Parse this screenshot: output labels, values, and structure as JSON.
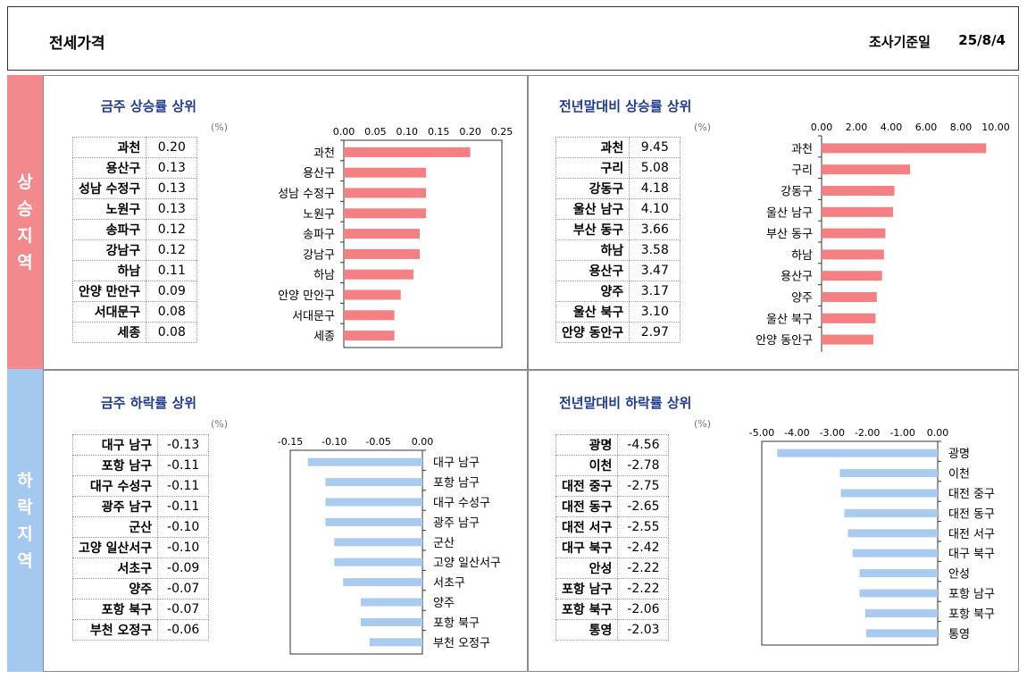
{
  "header": {
    "title": "전세가격",
    "date_label": "조사기준일",
    "date_value": "25/8/4"
  },
  "side_labels": {
    "rise": "상승지역",
    "fall": "하락지역"
  },
  "unit_label": "(%)",
  "panels": [
    {
      "id": "wk_up",
      "title": "금주 상승률 상위",
      "rows": [
        {
          "name": "과천",
          "value": "0.20"
        },
        {
          "name": "용산구",
          "value": "0.13"
        },
        {
          "name": "성남 수정구",
          "value": "0.13"
        },
        {
          "name": "노원구",
          "value": "0.13"
        },
        {
          "name": "송파구",
          "value": "0.12"
        },
        {
          "name": "강남구",
          "value": "0.12"
        },
        {
          "name": "하남",
          "value": "0.11"
        },
        {
          "name": "안양 만안구",
          "value": "0.09"
        },
        {
          "name": "서대문구",
          "value": "0.08"
        },
        {
          "name": "세종",
          "value": "0.08"
        }
      ]
    },
    {
      "id": "yr_up",
      "title": "전년말대비 상승률 상위",
      "rows": [
        {
          "name": "과천",
          "value": "9.45"
        },
        {
          "name": "구리",
          "value": "5.08"
        },
        {
          "name": "강동구",
          "value": "4.18"
        },
        {
          "name": "울산 남구",
          "value": "4.10"
        },
        {
          "name": "부산 동구",
          "value": "3.66"
        },
        {
          "name": "하남",
          "value": "3.58"
        },
        {
          "name": "용산구",
          "value": "3.47"
        },
        {
          "name": "양주",
          "value": "3.17"
        },
        {
          "name": "울산 북구",
          "value": "3.10"
        },
        {
          "name": "안양 동안구",
          "value": "2.97"
        }
      ]
    },
    {
      "id": "wk_down",
      "title": "금주 하락률 상위",
      "rows": [
        {
          "name": "대구 남구",
          "value": "-0.13"
        },
        {
          "name": "포항 남구",
          "value": "-0.11"
        },
        {
          "name": "대구 수성구",
          "value": "-0.11"
        },
        {
          "name": "광주 남구",
          "value": "-0.11"
        },
        {
          "name": "군산",
          "value": "-0.10"
        },
        {
          "name": "고양 일산서구",
          "value": "-0.10"
        },
        {
          "name": "서초구",
          "value": "-0.09"
        },
        {
          "name": "양주",
          "value": "-0.07"
        },
        {
          "name": "포항 북구",
          "value": "-0.07"
        },
        {
          "name": "부천 오정구",
          "value": "-0.06"
        }
      ]
    },
    {
      "id": "yr_down",
      "title": "전년말대비 하락률 상위",
      "rows": [
        {
          "name": "광명",
          "value": "-4.56"
        },
        {
          "name": "이천",
          "value": "-2.78"
        },
        {
          "name": "대전 중구",
          "value": "-2.75"
        },
        {
          "name": "대전 동구",
          "value": "-2.65"
        },
        {
          "name": "대전 서구",
          "value": "-2.55"
        },
        {
          "name": "대구 북구",
          "value": "-2.42"
        },
        {
          "name": "안성",
          "value": "-2.22"
        },
        {
          "name": "포항 남구",
          "value": "-2.22"
        },
        {
          "name": "포항 북구",
          "value": "-2.06"
        },
        {
          "name": "통영",
          "value": "-2.03"
        }
      ]
    }
  ],
  "chart_data": [
    {
      "type": "bar",
      "orientation": "horizontal",
      "bar_color": "#f48084",
      "categories": [
        "과천",
        "용산구",
        "성남 수정구",
        "노원구",
        "송파구",
        "강남구",
        "하남",
        "안양 만안구",
        "서대문구",
        "세종"
      ],
      "values": [
        0.2,
        0.13,
        0.13,
        0.13,
        0.12,
        0.12,
        0.11,
        0.09,
        0.08,
        0.08
      ],
      "xlim": [
        0,
        0.25
      ],
      "xticks": [
        "0.00",
        "0.05",
        "0.10",
        "0.15",
        "0.20",
        "0.25"
      ],
      "axis": "top",
      "grid": false
    },
    {
      "type": "bar",
      "orientation": "horizontal",
      "bar_color": "#f48084",
      "categories": [
        "과천",
        "구리",
        "강동구",
        "울산 남구",
        "부산 동구",
        "하남",
        "용산구",
        "양주",
        "울산 북구",
        "안양 동안구"
      ],
      "values": [
        9.45,
        5.08,
        4.18,
        4.1,
        3.66,
        3.58,
        3.47,
        3.17,
        3.1,
        2.97
      ],
      "xlim": [
        0,
        10
      ],
      "xticks": [
        "0.00",
        "2.00",
        "4.00",
        "6.00",
        "8.00",
        "10.00"
      ],
      "axis": "top",
      "grid": false
    },
    {
      "type": "bar",
      "orientation": "horizontal",
      "bar_color": "#a9cbef",
      "categories": [
        "대구 남구",
        "포항 남구",
        "대구 수성구",
        "광주 남구",
        "군산",
        "고양 일산서구",
        "서초구",
        "양주",
        "포항 북구",
        "부천 오정구"
      ],
      "values": [
        -0.13,
        -0.11,
        -0.11,
        -0.11,
        -0.1,
        -0.1,
        -0.09,
        -0.07,
        -0.07,
        -0.06
      ],
      "xlim": [
        -0.15,
        0
      ],
      "xticks": [
        "-0.15",
        "-0.10",
        "-0.05",
        "0.00"
      ],
      "axis": "top",
      "grid": false
    },
    {
      "type": "bar",
      "orientation": "horizontal",
      "bar_color": "#a9cbef",
      "categories": [
        "광명",
        "이천",
        "대전 중구",
        "대전 동구",
        "대전 서구",
        "대구 북구",
        "안성",
        "포항 남구",
        "포항 북구",
        "통영"
      ],
      "values": [
        -4.56,
        -2.78,
        -2.75,
        -2.65,
        -2.55,
        -2.42,
        -2.22,
        -2.22,
        -2.06,
        -2.03
      ],
      "xlim": [
        -5,
        0
      ],
      "xticks": [
        "-5.00",
        "-4.00",
        "-3.00",
        "-2.00",
        "-1.00",
        "0.00"
      ],
      "axis": "top",
      "grid": false
    }
  ]
}
